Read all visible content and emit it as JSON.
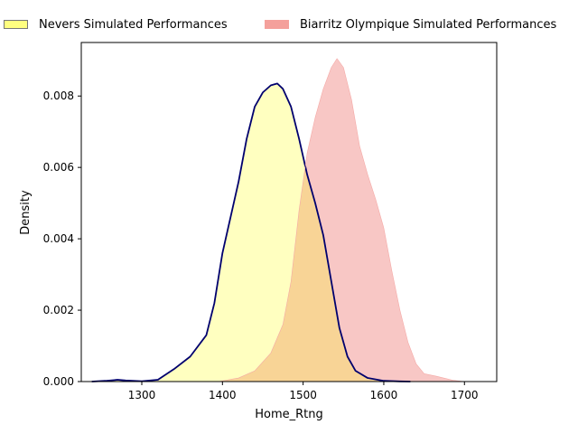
{
  "chart_data": {
    "type": "area",
    "title": "",
    "xlabel": "Home_Rtng",
    "ylabel": "Density",
    "xlim": [
      1225,
      1740
    ],
    "ylim": [
      0,
      0.0095
    ],
    "xticks": [
      1300,
      1400,
      1500,
      1600,
      1700
    ],
    "xtick_labels": [
      "1300",
      "1400",
      "1500",
      "1600",
      "1700"
    ],
    "yticks": [
      0,
      0.002,
      0.004,
      0.006,
      0.008
    ],
    "ytick_labels": [
      "0.000",
      "0.002",
      "0.004",
      "0.006",
      "0.008"
    ],
    "grid": false,
    "legend_position": "top",
    "series": [
      {
        "name": "Nevers Simulated Performances",
        "fill_color": "#ffffc0",
        "line_color": "#00006e",
        "legend_color": "#ffff80",
        "x": [
          1238,
          1255,
          1270,
          1280,
          1300,
          1320,
          1340,
          1360,
          1380,
          1390,
          1400,
          1410,
          1420,
          1430,
          1440,
          1450,
          1460,
          1468,
          1475,
          1485,
          1495,
          1505,
          1515,
          1525,
          1535,
          1545,
          1555,
          1565,
          1580,
          1600,
          1620,
          1633
        ],
        "values": [
          0,
          2e-05,
          5e-05,
          3e-05,
          1e-05,
          5e-05,
          0.00035,
          0.0007,
          0.0013,
          0.0022,
          0.0036,
          0.0046,
          0.0056,
          0.0068,
          0.0077,
          0.0081,
          0.0083,
          0.00835,
          0.0082,
          0.0077,
          0.0068,
          0.0058,
          0.005,
          0.0041,
          0.0028,
          0.0015,
          0.0007,
          0.0003,
          0.0001,
          2e-05,
          5e-06,
          0
        ]
      },
      {
        "name": "Biarritz Olympique Simulated Performances",
        "fill_color": "#f4a9a6",
        "line_color": "#f4a9a6",
        "legend_color": "#f4a09b",
        "x": [
          1395,
          1420,
          1440,
          1460,
          1475,
          1485,
          1495,
          1505,
          1515,
          1525,
          1535,
          1542,
          1550,
          1560,
          1570,
          1580,
          1590,
          1600,
          1610,
          1620,
          1630,
          1640,
          1650,
          1665,
          1685,
          1700
        ],
        "values": [
          0,
          0.0001,
          0.0003,
          0.0008,
          0.0016,
          0.0028,
          0.0048,
          0.0064,
          0.0074,
          0.0082,
          0.0088,
          0.00905,
          0.0088,
          0.0079,
          0.0066,
          0.0058,
          0.0051,
          0.0043,
          0.0031,
          0.002,
          0.0011,
          0.0005,
          0.00022,
          0.00015,
          4e-05,
          0
        ]
      }
    ]
  }
}
